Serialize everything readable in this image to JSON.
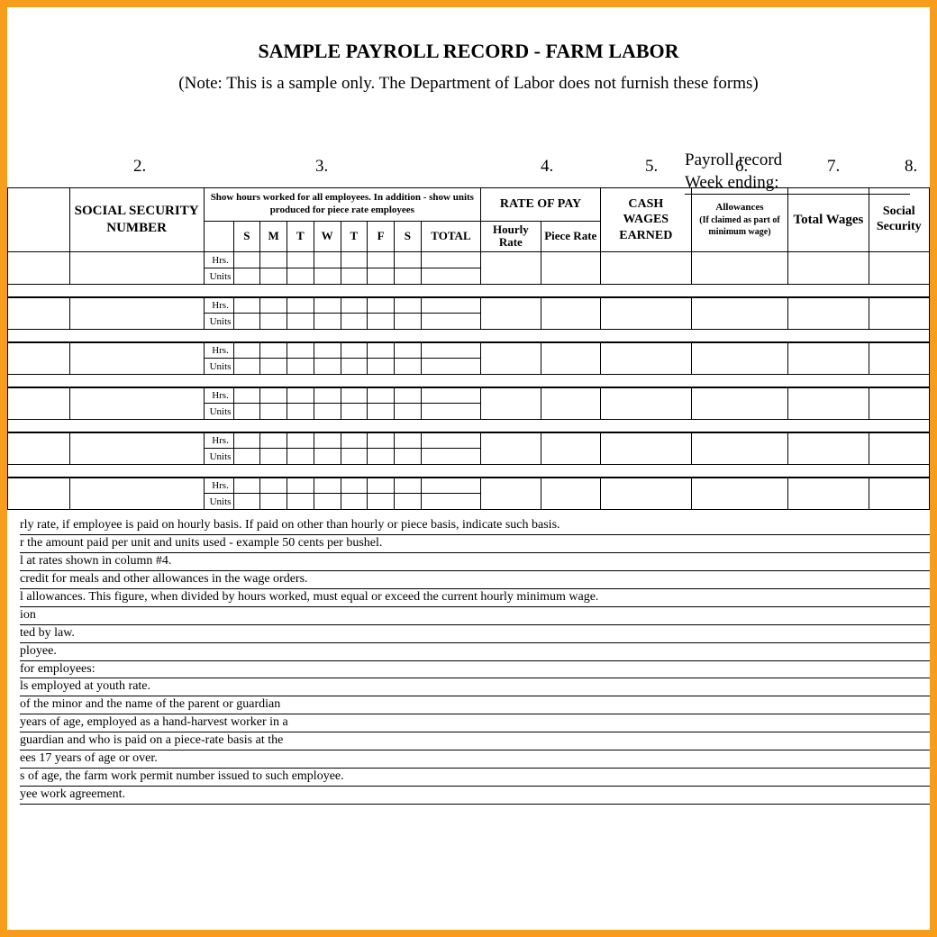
{
  "title": "SAMPLE PAYROLL RECORD - FARM LABOR",
  "note": "(Note:  This is a sample only.  The Department of Labor does not furnish these forms)",
  "record_block": {
    "line1": "Payroll record",
    "line2": "Week ending:"
  },
  "colnums": [
    "2.",
    "3.",
    "4.",
    "5.",
    "6.",
    "7.",
    "8."
  ],
  "headers": {
    "social": "SOCIAL SECURITY NUMBER",
    "hours_note": "Show hours worked for all employees.  In addition - show units produced for piece rate employees",
    "days": [
      "S",
      "M",
      "T",
      "W",
      "T",
      "F",
      "S"
    ],
    "total": "TOTAL",
    "rate": "RATE OF PAY",
    "hourly": "Hourly Rate",
    "piece": "Piece Rate",
    "cash": "CASH WAGES EARNED",
    "allow_main": "Allowances",
    "allow_sub": "(If claimed as part of minimum wage)",
    "totalw": "Total Wages",
    "ss": "Social Security"
  },
  "row_labels": {
    "hrs": "Hrs.",
    "units": "Units"
  },
  "footer": [
    "rly rate, if employee is paid on hourly basis.  If paid on other than hourly or piece basis, indicate such basis.",
    "r the amount paid per unit and units used - example 50 cents per bushel.",
    "l at rates shown in column #4.",
    "credit for meals and other allowances in the wage orders.",
    "l allowances.  This figure, when divided by hours worked, must equal or exceed the current hourly minimum wage.",
    "ion",
    "ted by law.",
    "ployee.",
    "for employees:",
    "ls employed at youth rate.",
    "of the minor and the name of the parent or guardian",
    "years of age, employed as a hand-harvest worker in a",
    "guardian and who is paid on a piece-rate basis at the",
    "ees 17 years of age or over.",
    "s of age, the farm work permit number issued to such employee.",
    "yee work agreement."
  ]
}
